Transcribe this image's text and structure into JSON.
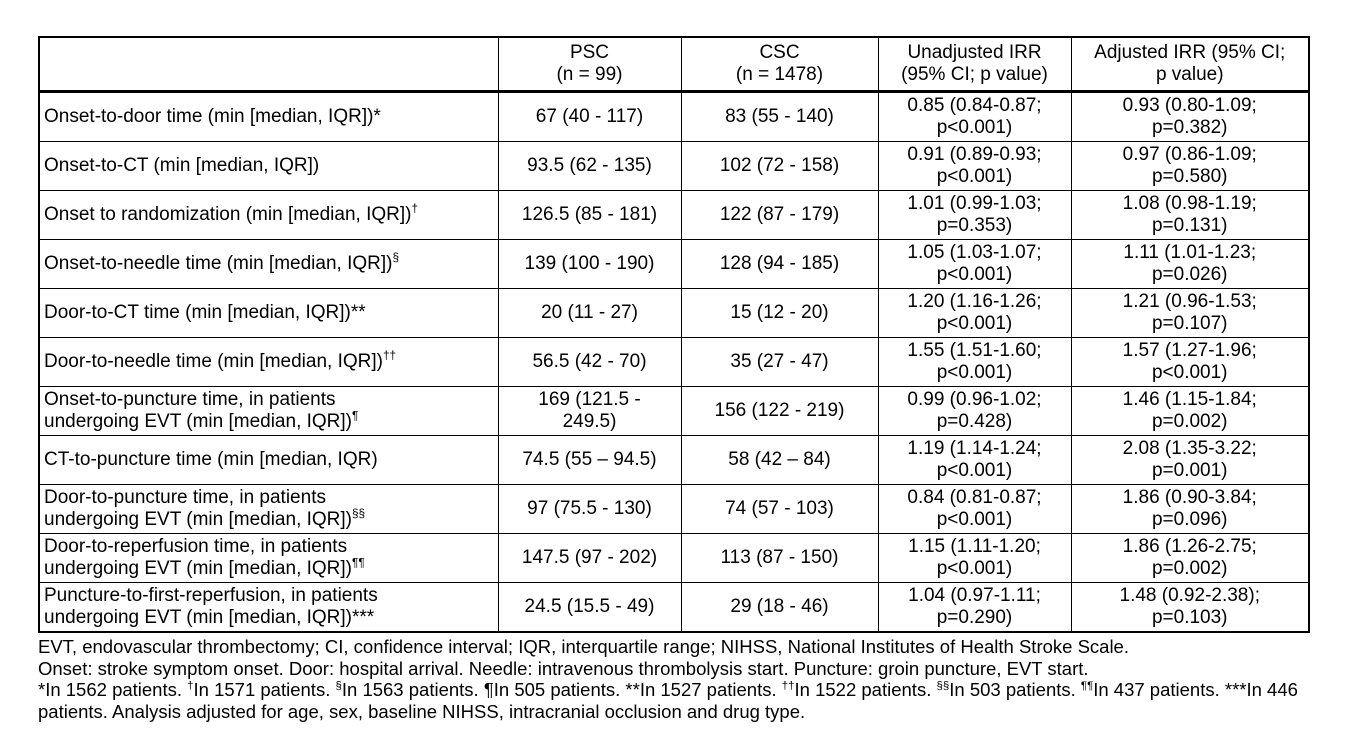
{
  "table": {
    "headers": {
      "label": "",
      "psc": "PSC\n(n = 99)",
      "csc": "CSC\n(n = 1478)",
      "unadjusted": "Unadjusted IRR\n(95% CI; p value)",
      "adjusted": "Adjusted IRR (95% CI;\np value)"
    },
    "rows": [
      {
        "label": "Onset-to-door time (min [median, IQR])*",
        "marker": "",
        "psc": "67 (40 - 117)",
        "csc": "83 (55 - 140)",
        "unadjusted": "0.85 (0.84-0.87;\np<0.001)",
        "adjusted": "0.93 (0.80-1.09;\np=0.382)"
      },
      {
        "label": "Onset-to-CT (min [median, IQR])",
        "marker": "",
        "psc": "93.5 (62 - 135)",
        "csc": "102 (72 - 158)",
        "unadjusted": "0.91 (0.89-0.93;\np<0.001)",
        "adjusted": "0.97 (0.86-1.09;\np=0.580)"
      },
      {
        "label": "Onset to randomization (min [median, IQR])",
        "marker": "†",
        "psc": "126.5 (85 - 181)",
        "csc": "122 (87 - 179)",
        "unadjusted": "1.01 (0.99-1.03;\np=0.353)",
        "adjusted": "1.08 (0.98-1.19;\np=0.131)"
      },
      {
        "label": "Onset-to-needle time (min [median, IQR])",
        "marker": "§",
        "psc": "139 (100 - 190)",
        "csc": "128 (94 - 185)",
        "unadjusted": "1.05 (1.03-1.07;\np<0.001)",
        "adjusted": "1.11 (1.01-1.23;\np=0.026)"
      },
      {
        "label": "Door-to-CT time (min [median, IQR])**",
        "marker": "",
        "psc": "20 (11 - 27)",
        "csc": "15 (12 - 20)",
        "unadjusted": "1.20 (1.16-1.26;\np<0.001)",
        "adjusted": "1.21 (0.96-1.53;\np=0.107)"
      },
      {
        "label": "Door-to-needle time (min [median, IQR])",
        "marker": "††",
        "psc": "56.5 (42 - 70)",
        "csc": "35 (27 - 47)",
        "unadjusted": "1.55 (1.51-1.60;\np<0.001)",
        "adjusted": "1.57 (1.27-1.96;\np<0.001)"
      },
      {
        "label": "Onset-to-puncture time, in patients\nundergoing EVT (min [median, IQR])",
        "marker": "¶",
        "psc": "169 (121.5 -\n249.5)",
        "csc": "156 (122 - 219)",
        "unadjusted": "0.99 (0.96-1.02;\np=0.428)",
        "adjusted": "1.46 (1.15-1.84;\np=0.002)"
      },
      {
        "label": "CT-to-puncture time (min [median, IQR)",
        "marker": "",
        "psc": "74.5 (55 – 94.5)",
        "csc": "58 (42 – 84)",
        "unadjusted": "1.19 (1.14-1.24;\np<0.001)",
        "adjusted": "2.08 (1.35-3.22;\np=0.001)"
      },
      {
        "label": "Door-to-puncture time, in patients\nundergoing EVT (min [median, IQR])",
        "marker": "§§",
        "psc": "97 (75.5 - 130)",
        "csc": "74 (57 - 103)",
        "unadjusted": "0.84 (0.81-0.87;\np<0.001)",
        "adjusted": "1.86 (0.90-3.84;\np=0.096)"
      },
      {
        "label": "Door-to-reperfusion time, in patients\nundergoing EVT (min [median, IQR])",
        "marker": "¶¶",
        "psc": "147.5 (97 - 202)",
        "csc": "113 (87 - 150)",
        "unadjusted": "1.15 (1.11-1.20;\np<0.001)",
        "adjusted": "1.86 (1.26-2.75;\np=0.002)"
      },
      {
        "label": "Puncture-to-first-reperfusion, in patients\nundergoing EVT (min [median, IQR])***",
        "marker": "",
        "psc": "24.5 (15.5 - 49)",
        "csc": "29 (18 - 46)",
        "unadjusted": "1.04 (0.97-1.11;\np=0.290)",
        "adjusted": "1.48 (0.92-2.38);\np=0.103)"
      }
    ]
  },
  "footnotes": {
    "line1": "EVT, endovascular thrombectomy; CI, confidence interval; IQR, interquartile range; NIHSS, National Institutes of Health Stroke Scale.",
    "line2": "Onset: stroke symptom onset. Door: hospital arrival. Needle: intravenous thrombolysis start. Puncture: groin puncture, EVT start.",
    "line3_segments": [
      {
        "text": "*In 1562 patients. ",
        "sup": false
      },
      {
        "text": "†",
        "sup": true
      },
      {
        "text": "In 1571 patients. ",
        "sup": false
      },
      {
        "text": "§",
        "sup": true
      },
      {
        "text": "In 1563 patients. ",
        "sup": false
      },
      {
        "text": "¶In 505 patients. ",
        "sup": false
      },
      {
        "text": "**In 1527 patients. ",
        "sup": false
      },
      {
        "text": "††",
        "sup": true
      },
      {
        "text": "In 1522 patients. ",
        "sup": false
      },
      {
        "text": "§§",
        "sup": true
      },
      {
        "text": "In 503 patients. ",
        "sup": false
      },
      {
        "text": "¶¶",
        "sup": true
      },
      {
        "text": "In 437 patients. ",
        "sup": false
      },
      {
        "text": "***In 446 patients. Analysis adjusted for age, sex, baseline NIHSS, intracranial occlusion and drug type.",
        "sup": false
      }
    ]
  }
}
